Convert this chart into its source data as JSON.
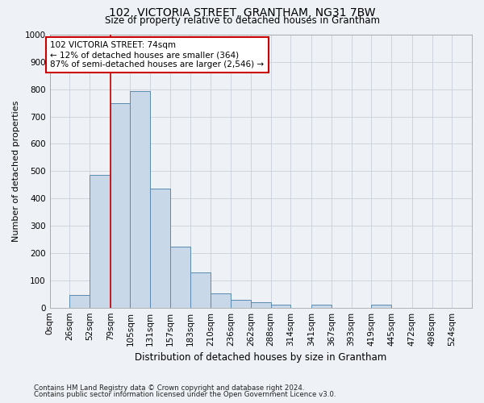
{
  "title": "102, VICTORIA STREET, GRANTHAM, NG31 7BW",
  "subtitle": "Size of property relative to detached houses in Grantham",
  "xlabel": "Distribution of detached houses by size in Grantham",
  "ylabel": "Number of detached properties",
  "footnote1": "Contains HM Land Registry data © Crown copyright and database right 2024.",
  "footnote2": "Contains public sector information licensed under the Open Government Licence v3.0.",
  "bar_labels": [
    "0sqm",
    "26sqm",
    "52sqm",
    "79sqm",
    "105sqm",
    "131sqm",
    "157sqm",
    "183sqm",
    "210sqm",
    "236sqm",
    "262sqm",
    "288sqm",
    "314sqm",
    "341sqm",
    "367sqm",
    "393sqm",
    "419sqm",
    "445sqm",
    "472sqm",
    "498sqm",
    "524sqm"
  ],
  "bar_values": [
    0,
    45,
    487,
    748,
    793,
    435,
    222,
    130,
    52,
    30,
    19,
    12,
    0,
    10,
    0,
    0,
    10,
    0,
    0,
    0,
    0
  ],
  "bar_color": "#c8d8e8",
  "bar_edge_color": "#5a8ab0",
  "grid_color": "#c8d0d8",
  "background_color": "#eef2f6",
  "vline_x_index": 3,
  "vline_color": "#cc0000",
  "annotation_text": "102 VICTORIA STREET: 74sqm\n← 12% of detached houses are smaller (364)\n87% of semi-detached houses are larger (2,546) →",
  "annotation_box_color": "#ffffff",
  "annotation_box_edge": "#cc0000",
  "ylim": [
    0,
    1000
  ],
  "yticks": [
    0,
    100,
    200,
    300,
    400,
    500,
    600,
    700,
    800,
    900,
    1000
  ],
  "bin_edges": [
    0,
    26,
    52,
    79,
    105,
    131,
    157,
    183,
    210,
    236,
    262,
    288,
    314,
    341,
    367,
    393,
    419,
    445,
    472,
    498,
    524,
    550
  ]
}
